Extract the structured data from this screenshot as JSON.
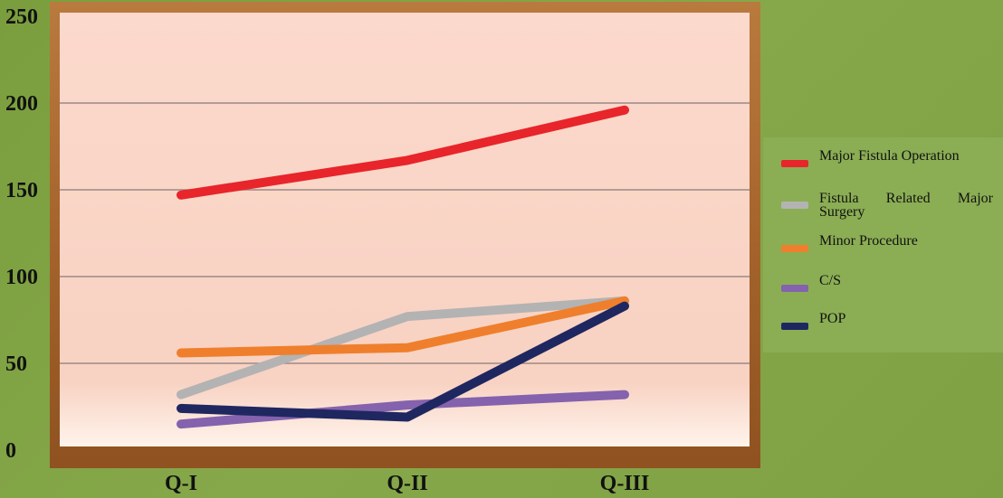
{
  "chart_data": {
    "type": "line",
    "categories": [
      "Q-I",
      "Q-II",
      "Q-III"
    ],
    "ylim": [
      0,
      250
    ],
    "yticks": [
      0,
      50,
      100,
      150,
      200,
      250
    ],
    "grid": true,
    "legend_position": "right",
    "title": "",
    "xlabel": "",
    "ylabel": "",
    "series": [
      {
        "name": "Major Fistula Operation",
        "color": "#e8252a",
        "values": [
          147,
          167,
          196
        ]
      },
      {
        "name": "Fistula Related Major Surgery",
        "color": "#b3b3b3",
        "values": [
          32,
          77,
          86
        ]
      },
      {
        "name": "Minor Procedure",
        "color": "#ef7f2c",
        "values": [
          56,
          59,
          86
        ]
      },
      {
        "name": "C/S",
        "color": "#8462ad",
        "values": [
          15,
          26,
          32
        ]
      },
      {
        "name": "POP",
        "color": "#1f2760",
        "values": [
          24,
          19,
          83
        ]
      }
    ]
  }
}
